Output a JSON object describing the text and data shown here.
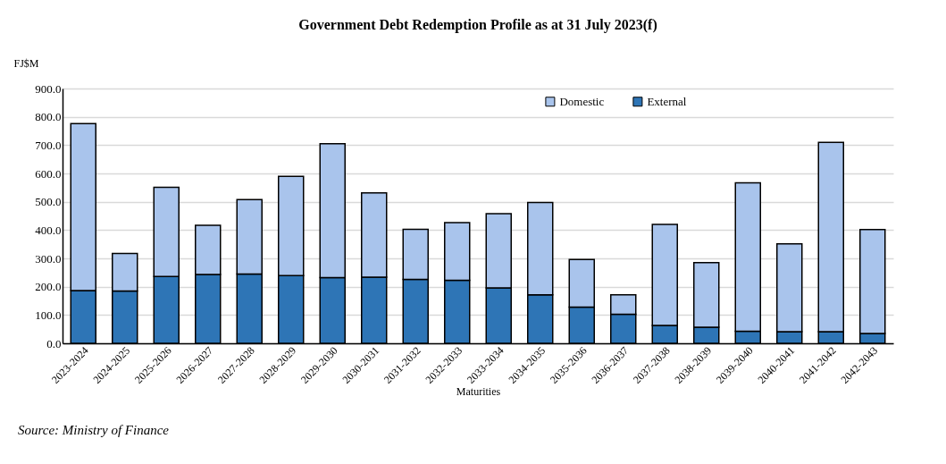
{
  "chart_data": {
    "type": "bar",
    "stacked": true,
    "title": "Government Debt Redemption Profile as at 31 July 2023(f)",
    "ylabel": "FJ$M",
    "xlabel": "Maturities",
    "categories": [
      "2023-2024",
      "2024-2025",
      "2025-2026",
      "2026-2027",
      "2027-2028",
      "2028-2029",
      "2029-2030",
      "2030-2031",
      "2031-2032",
      "2032-2033",
      "2033-2034",
      "2034-2035",
      "2035-2036",
      "2036-2037",
      "2037-2038",
      "2038-2039",
      "2039-2040",
      "2040-2041",
      "2041-2042",
      "2042-2043"
    ],
    "series": [
      {
        "name": "External",
        "color": "#2e75b6",
        "values": [
          186,
          185,
          236,
          243,
          245,
          239,
          232,
          234,
          226,
          223,
          196,
          171,
          128,
          103,
          63,
          57,
          43,
          41,
          41,
          35
        ]
      },
      {
        "name": "Domestic",
        "color": "#a9c4ec",
        "values": [
          590,
          132,
          315,
          174,
          263,
          351,
          473,
          297,
          177,
          203,
          262,
          326,
          168,
          68,
          357,
          228,
          524,
          310,
          669,
          367
        ]
      }
    ],
    "ylim": [
      0,
      900
    ],
    "yticks": [
      {
        "value": 0,
        "label": "0.0"
      },
      {
        "value": 100,
        "label": "100.0"
      },
      {
        "value": 200,
        "label": "200.0"
      },
      {
        "value": 300,
        "label": "300.0"
      },
      {
        "value": 400,
        "label": "400.0"
      },
      {
        "value": 500,
        "label": "500.0"
      },
      {
        "value": 600,
        "label": "600.0"
      },
      {
        "value": 700,
        "label": "700.0"
      },
      {
        "value": 800,
        "label": "800.0"
      },
      {
        "value": 900,
        "label": "900.0"
      }
    ],
    "grid": "y",
    "legend": "top",
    "annotations": [
      "Source: Ministry of Finance"
    ]
  }
}
